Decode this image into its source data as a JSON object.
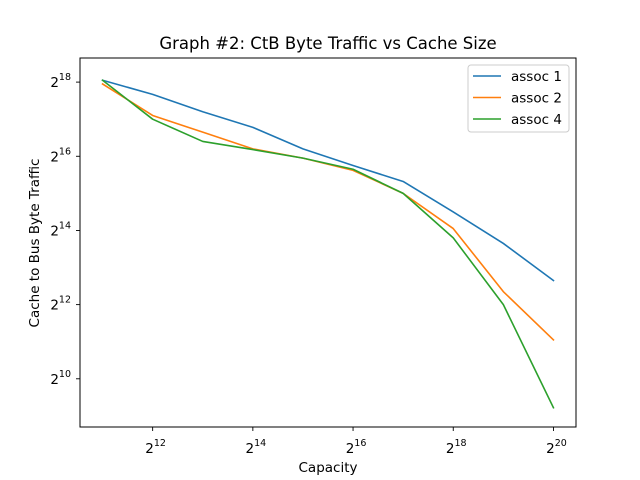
{
  "chart_data": {
    "type": "line",
    "title": "Graph #2: CtB Byte Traffic vs Cache Size",
    "xlabel": "Capacity",
    "ylabel": "Cache to Bus Byte Traffic",
    "xscale": "log2",
    "yscale": "log2",
    "x": [
      2048,
      4096,
      8192,
      16384,
      32768,
      65536,
      131072,
      262144,
      524288,
      1048576
    ],
    "x_exponents": [
      11,
      12,
      13,
      14,
      15,
      16,
      17,
      18,
      19,
      20
    ],
    "xlim_exponent": [
      10.55,
      20.45
    ],
    "ylim_exponent": [
      8.7,
      18.65
    ],
    "x_ticks": [
      {
        "base": "2",
        "exp": "12",
        "value": 12
      },
      {
        "base": "2",
        "exp": "14",
        "value": 14
      },
      {
        "base": "2",
        "exp": "16",
        "value": 16
      },
      {
        "base": "2",
        "exp": "18",
        "value": 18
      },
      {
        "base": "2",
        "exp": "20",
        "value": 20
      }
    ],
    "y_ticks": [
      {
        "base": "2",
        "exp": "10",
        "value": 10
      },
      {
        "base": "2",
        "exp": "12",
        "value": 12
      },
      {
        "base": "2",
        "exp": "14",
        "value": 14
      },
      {
        "base": "2",
        "exp": "16",
        "value": 16
      },
      {
        "base": "2",
        "exp": "18",
        "value": 18
      }
    ],
    "series": [
      {
        "name": "assoc 1",
        "color": "#1f77b4",
        "log2_values": [
          18.05,
          17.67,
          17.2,
          16.78,
          16.2,
          15.75,
          15.32,
          14.5,
          13.65,
          12.65
        ]
      },
      {
        "name": "assoc 2",
        "color": "#ff7f0e",
        "log2_values": [
          17.95,
          17.1,
          16.65,
          16.2,
          15.95,
          15.62,
          15.0,
          14.05,
          12.35,
          11.05
        ]
      },
      {
        "name": "assoc 4",
        "color": "#2ca02c",
        "log2_values": [
          18.05,
          17.0,
          16.4,
          16.18,
          15.95,
          15.65,
          15.0,
          13.8,
          12.0,
          9.22
        ]
      }
    ],
    "grid": false,
    "legend_position": "top-right"
  }
}
